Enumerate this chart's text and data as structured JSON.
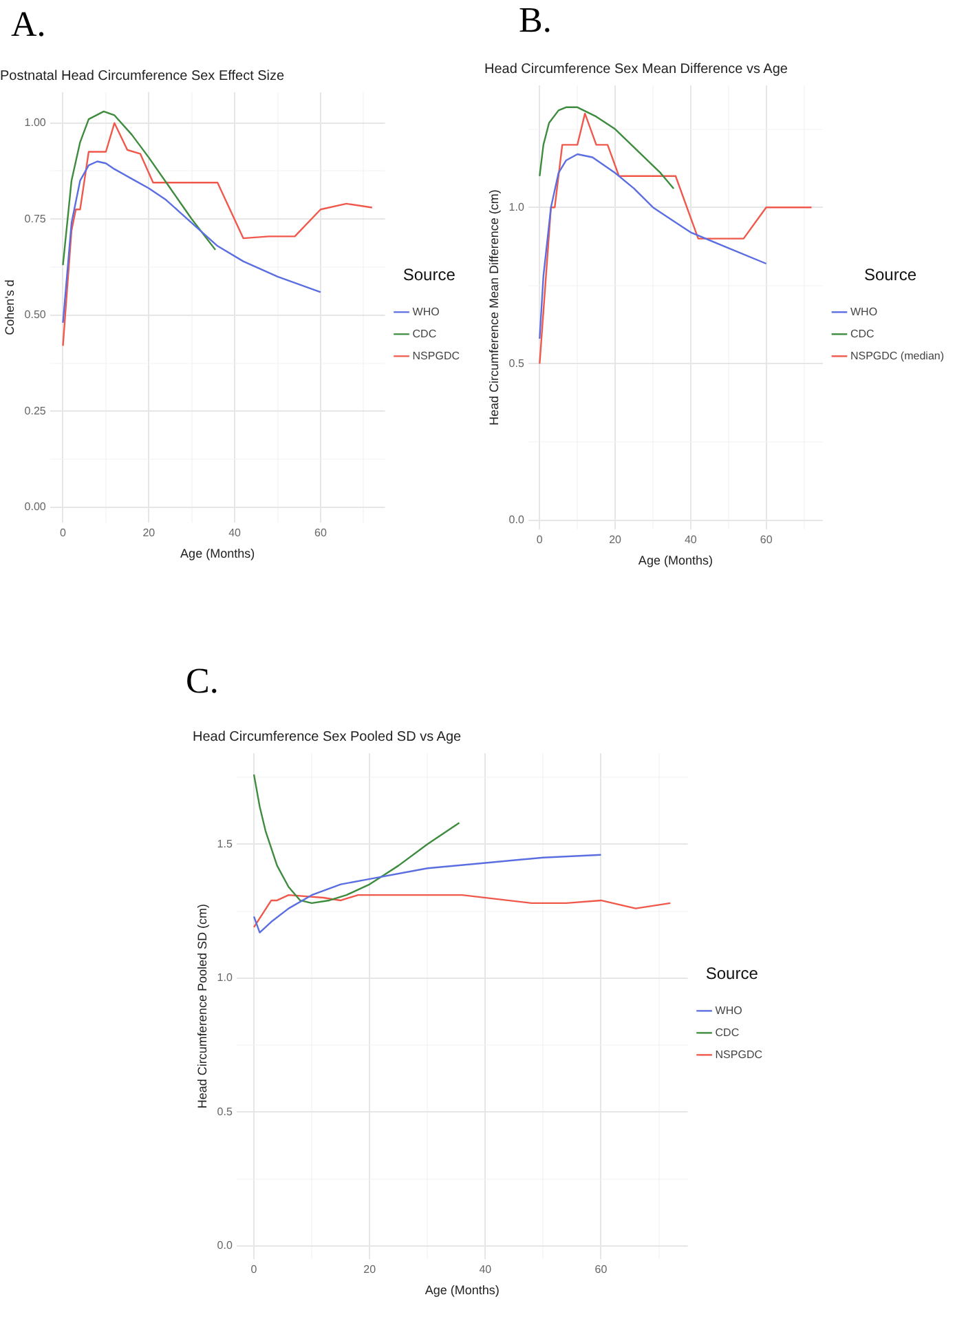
{
  "chart_data": [
    {
      "type": "line",
      "title": "Postnatal Head Circumference Sex Effect Size",
      "xlabel": "Age (Months)",
      "ylabel": "Cohen's d",
      "legend_title": "Source",
      "legend": "right",
      "grid": true,
      "marker": "none",
      "annotations": [
        "A."
      ],
      "xlim": [
        -3,
        75
      ],
      "xticks": [
        0,
        {
          "value": 10,
          "label": null
        },
        20,
        {
          "value": 30,
          "label": null
        },
        40,
        {
          "value": 50,
          "label": null
        },
        60,
        {
          "value": 70,
          "label": null
        }
      ],
      "ylim": [
        -0.04,
        1.08
      ],
      "yticks": [
        {
          "value": 0,
          "label": "0.00"
        },
        {
          "value": 0.125,
          "label": null
        },
        0.25,
        {
          "value": 0.375,
          "label": null
        },
        {
          "value": 0.5,
          "label": "0.50"
        },
        {
          "value": 0.625,
          "label": null
        },
        0.75,
        {
          "value": 0.875,
          "label": null
        },
        {
          "value": 1,
          "label": "1.00"
        }
      ],
      "series": [
        {
          "name": "WHO",
          "color": "#5b6ee1",
          "x": [
            0,
            2,
            4,
            6,
            8,
            10,
            12,
            16,
            20,
            24,
            27,
            30,
            36,
            42,
            50,
            60
          ],
          "values": [
            0.48,
            0.74,
            0.85,
            0.89,
            0.9,
            0.895,
            0.88,
            0.855,
            0.83,
            0.8,
            0.77,
            0.74,
            0.68,
            0.64,
            0.6,
            0.56
          ]
        },
        {
          "name": "CDC",
          "color": "#3d8b3d",
          "x": [
            0,
            2,
            4,
            6,
            9.5,
            12,
            16,
            20,
            25,
            30,
            35.5
          ],
          "values": [
            0.63,
            0.85,
            0.95,
            1.01,
            1.03,
            1.02,
            0.97,
            0.91,
            0.83,
            0.75,
            0.67
          ]
        },
        {
          "name": "NSPGDC",
          "color": "#f0584c",
          "x": [
            0,
            2,
            3,
            4,
            6,
            10,
            12,
            15,
            18,
            21,
            36,
            42,
            48,
            54,
            60,
            66,
            72
          ],
          "values": [
            0.42,
            0.72,
            0.775,
            0.775,
            0.925,
            0.925,
            1.0,
            0.93,
            0.92,
            0.845,
            0.845,
            0.7,
            0.705,
            0.705,
            0.775,
            0.79,
            0.78
          ]
        }
      ]
    },
    {
      "type": "line",
      "title": "Head Circumference Sex Mean Difference vs Age",
      "xlabel": "Age (Months)",
      "ylabel": "Head Circumference Mean Difference (cm)",
      "legend_title": "Source",
      "legend": "right",
      "grid": true,
      "marker": "none",
      "annotations": [
        "B."
      ],
      "xlim": [
        -3,
        75
      ],
      "xticks": [
        0,
        {
          "value": 10,
          "label": null
        },
        20,
        {
          "value": 30,
          "label": null
        },
        40,
        {
          "value": 50,
          "label": null
        },
        60,
        {
          "value": 70,
          "label": null
        }
      ],
      "ylim": [
        -0.03,
        1.39
      ],
      "yticks": [
        {
          "value": 0,
          "label": "0.0"
        },
        {
          "value": 0.25,
          "label": null
        },
        0.5,
        {
          "value": 0.75,
          "label": null
        },
        {
          "value": 1,
          "label": "1.0"
        },
        {
          "value": 1.25,
          "label": null
        }
      ],
      "series": [
        {
          "name": "WHO",
          "color": "#5b6ee1",
          "x": [
            0,
            1,
            3,
            5,
            7,
            10,
            14,
            20,
            25,
            30,
            35,
            40,
            50,
            60
          ],
          "values": [
            0.58,
            0.78,
            1.0,
            1.11,
            1.15,
            1.17,
            1.16,
            1.11,
            1.06,
            1.0,
            0.96,
            0.92,
            0.87,
            0.82
          ]
        },
        {
          "name": "CDC",
          "color": "#3d8b3d",
          "x": [
            0,
            1,
            2.5,
            5,
            7,
            10,
            15,
            20,
            26,
            32,
            35.5
          ],
          "values": [
            1.1,
            1.2,
            1.27,
            1.31,
            1.32,
            1.32,
            1.29,
            1.25,
            1.18,
            1.11,
            1.06
          ]
        },
        {
          "name": "NSPGDC (median)",
          "color": "#f0584c",
          "x": [
            0,
            3,
            4,
            6,
            10,
            12,
            15,
            18,
            21,
            36,
            42,
            54,
            60,
            72
          ],
          "values": [
            0.5,
            1.0,
            1.0,
            1.2,
            1.2,
            1.3,
            1.2,
            1.2,
            1.1,
            1.1,
            0.9,
            0.9,
            1.0,
            1.0
          ]
        }
      ]
    },
    {
      "type": "line",
      "title": "Head Circumference Sex Pooled SD vs Age",
      "xlabel": "Age (Months)",
      "ylabel": "Head Circumference Pooled SD (cm)",
      "legend_title": "Source",
      "legend": "right",
      "grid": true,
      "marker": "none",
      "annotations": [
        "C."
      ],
      "xlim": [
        -3,
        75
      ],
      "xticks": [
        0,
        {
          "value": 10,
          "label": null
        },
        20,
        {
          "value": 30,
          "label": null
        },
        40,
        {
          "value": 50,
          "label": null
        },
        60,
        {
          "value": 70,
          "label": null
        }
      ],
      "ylim": [
        -0.05,
        1.84
      ],
      "yticks": [
        {
          "value": 0,
          "label": "0.0"
        },
        {
          "value": 0.25,
          "label": null
        },
        0.5,
        {
          "value": 0.75,
          "label": null
        },
        {
          "value": 1,
          "label": "1.0"
        },
        {
          "value": 1.25,
          "label": null
        },
        1.5,
        {
          "value": 1.75,
          "label": null
        }
      ],
      "series": [
        {
          "name": "WHO",
          "color": "#5b6ee1",
          "x": [
            0,
            1,
            3,
            6,
            10,
            15,
            20,
            30,
            40,
            50,
            60
          ],
          "values": [
            1.23,
            1.17,
            1.21,
            1.26,
            1.31,
            1.35,
            1.37,
            1.41,
            1.43,
            1.45,
            1.46
          ]
        },
        {
          "name": "CDC",
          "color": "#3d8b3d",
          "x": [
            0,
            1,
            2,
            4,
            6,
            8,
            10,
            13,
            16,
            20,
            25,
            30,
            35.5
          ],
          "values": [
            1.76,
            1.64,
            1.55,
            1.42,
            1.34,
            1.29,
            1.28,
            1.29,
            1.31,
            1.35,
            1.42,
            1.5,
            1.58
          ]
        },
        {
          "name": "NSPGDC",
          "color": "#f0584c",
          "x": [
            0,
            3,
            4,
            6,
            12,
            15,
            18,
            36,
            48,
            54,
            60,
            66,
            72
          ],
          "values": [
            1.19,
            1.29,
            1.29,
            1.31,
            1.3,
            1.29,
            1.31,
            1.31,
            1.28,
            1.28,
            1.29,
            1.26,
            1.28
          ]
        }
      ]
    }
  ]
}
